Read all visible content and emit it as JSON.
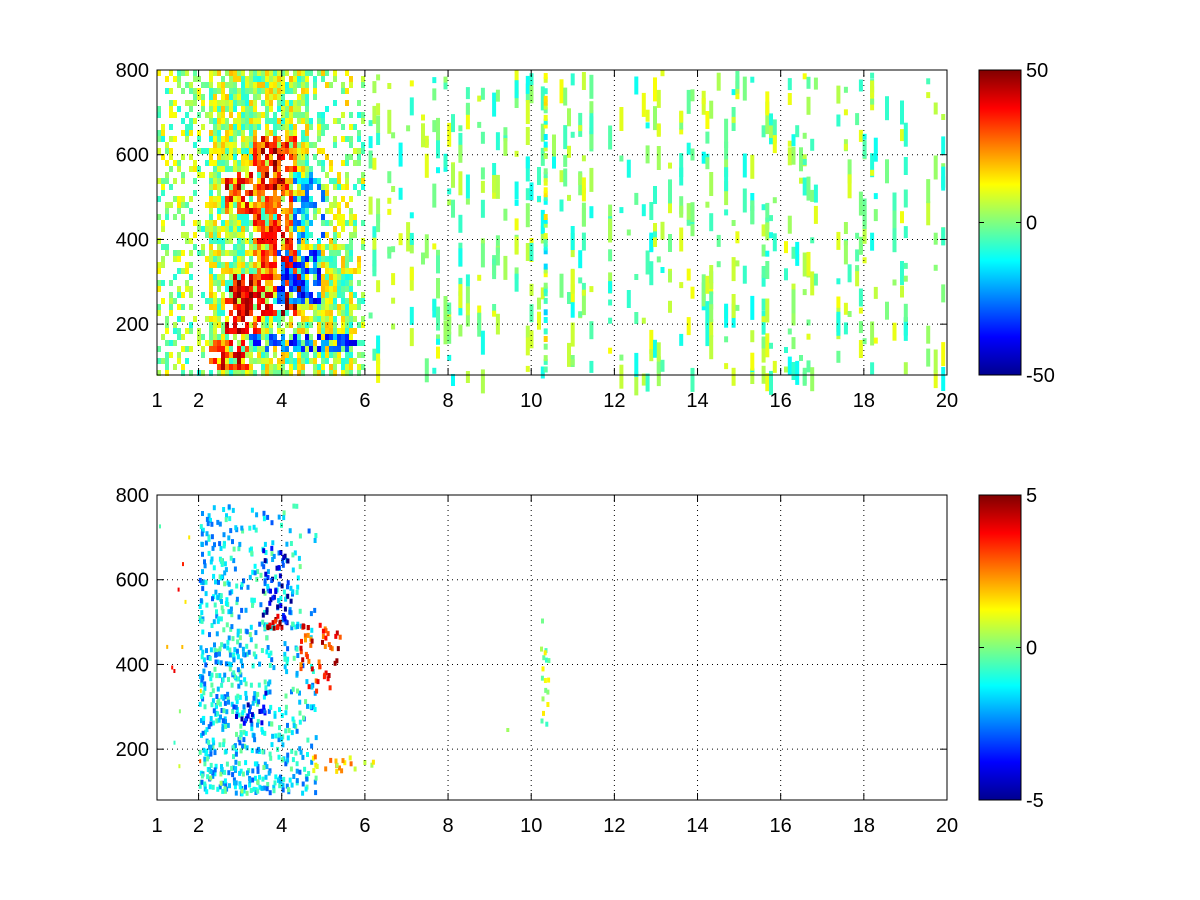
{
  "chart_data": [
    {
      "type": "heatmap",
      "title": "",
      "xlabel": "",
      "ylabel": "",
      "xlim": [
        1,
        20
      ],
      "ylim": [
        80,
        800
      ],
      "x_ticks": [
        1,
        2,
        4,
        6,
        8,
        10,
        12,
        14,
        16,
        18,
        20
      ],
      "x_tick_labels": [
        "1",
        "2",
        "4",
        "6",
        "8",
        "10",
        "12",
        "14",
        "16",
        "18",
        "20"
      ],
      "x_grid": [
        2,
        4,
        6,
        8,
        10,
        12,
        14,
        16,
        18,
        20
      ],
      "y_ticks": [
        200,
        400,
        600,
        800
      ],
      "y_tick_labels": [
        "200",
        "400",
        "600",
        "800"
      ],
      "grid": true,
      "grid_style": "dotted",
      "colormap": "jet",
      "clim": [
        -50,
        50
      ],
      "colorbar_tick_labels": [
        "50",
        "0",
        "-50"
      ],
      "colorbar_ticks": [
        50,
        0,
        -50
      ],
      "features": [
        {
          "x": [
            2.2,
            5.6
          ],
          "y": [
            100,
            800
          ],
          "value": 8,
          "description": "dense mixed field"
        },
        {
          "x": [
            2.2,
            3.2
          ],
          "y": [
            100,
            175
          ],
          "value": 35
        },
        {
          "x": [
            2.6,
            3.5
          ],
          "y": [
            180,
            300
          ],
          "value": 40
        },
        {
          "x": [
            2.8,
            4.4
          ],
          "y": [
            220,
            320
          ],
          "value": 42
        },
        {
          "x": [
            3.3,
            4.3
          ],
          "y": [
            300,
            650
          ],
          "value": 30
        },
        {
          "x": [
            3.5,
            4.1
          ],
          "y": [
            520,
            620
          ],
          "value": 38
        },
        {
          "x": [
            2.6,
            3.4
          ],
          "y": [
            470,
            560
          ],
          "value": 35
        },
        {
          "x": [
            3.8,
            4.9
          ],
          "y": [
            260,
            380
          ],
          "value": -30
        },
        {
          "x": [
            4.2,
            5.0
          ],
          "y": [
            400,
            560
          ],
          "value": -18
        },
        {
          "x": [
            3.2,
            5.8
          ],
          "y": [
            145,
            180
          ],
          "value": -28
        },
        {
          "x": [
            1.0,
            6.0
          ],
          "y": [
            80,
            800
          ],
          "value": 12,
          "description": "sparse background"
        }
      ],
      "sparse_region": {
        "x": [
          6,
          20
        ],
        "y": [
          80,
          800
        ],
        "value_range": [
          -12,
          12
        ]
      }
    },
    {
      "type": "heatmap",
      "title": "",
      "xlabel": "",
      "ylabel": "",
      "xlim": [
        1,
        20
      ],
      "ylim": [
        80,
        800
      ],
      "x_ticks": [
        1,
        2,
        4,
        6,
        8,
        10,
        12,
        14,
        16,
        18,
        20
      ],
      "x_tick_labels": [
        "1",
        "2",
        "4",
        "6",
        "8",
        "10",
        "12",
        "14",
        "16",
        "18",
        "20"
      ],
      "x_grid": [
        2,
        4,
        6,
        8,
        10,
        12,
        14,
        16,
        18,
        20
      ],
      "y_ticks": [
        200,
        400,
        600,
        800
      ],
      "y_tick_labels": [
        "200",
        "400",
        "600",
        "800"
      ],
      "grid": true,
      "grid_style": "dotted",
      "colormap": "jet",
      "clim": [
        -5,
        5
      ],
      "colorbar_tick_labels": [
        "5",
        "0",
        "-5"
      ],
      "colorbar_ticks": [
        5,
        0,
        -5
      ],
      "features": [
        {
          "x": [
            2.0,
            4.8
          ],
          "y": [
            100,
            780
          ],
          "value": -1.5,
          "description": "main cluster"
        },
        {
          "x": [
            2.0,
            3.2
          ],
          "y": [
            100,
            160
          ],
          "value": -1.0
        },
        {
          "x": [
            3.5,
            4.2
          ],
          "y": [
            500,
            680
          ],
          "value": -4.0
        },
        {
          "x": [
            2.8,
            3.6
          ],
          "y": [
            260,
            340
          ],
          "value": -3.5
        },
        {
          "x": [
            3.6,
            4.0
          ],
          "y": [
            490,
            520
          ],
          "value": 4.5
        },
        {
          "x": [
            4.4,
            5.4
          ],
          "y": [
            340,
            500
          ],
          "value": 3.5
        },
        {
          "x": [
            4.6,
            6.2
          ],
          "y": [
            150,
            190
          ],
          "value": 1.5
        },
        {
          "x": [
            10.2,
            10.4
          ],
          "y": [
            250,
            520
          ],
          "value": 0.5
        }
      ]
    }
  ]
}
